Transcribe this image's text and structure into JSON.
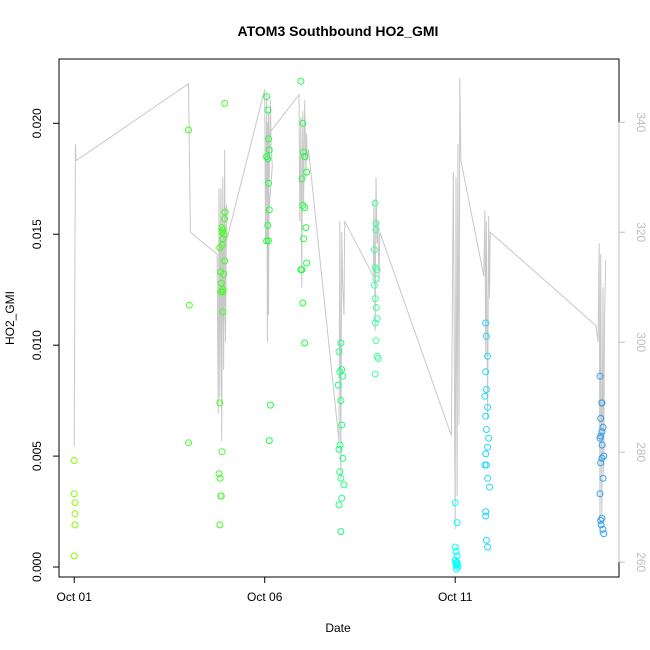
{
  "chart_data": {
    "type": "scatter",
    "title": "ATOM3 Southbound HO2_GMI",
    "xlabel": "Date",
    "ylabel": "HO2_GMI",
    "x_ticks": [
      {
        "label": "Oct 01",
        "value": 1
      },
      {
        "label": "Oct 06",
        "value": 6
      },
      {
        "label": "Oct 11",
        "value": 11
      }
    ],
    "xlim": [
      0.6,
      15.3
    ],
    "ylim": [
      -0.00045,
      0.0229
    ],
    "y_ticks": [
      0.0,
      0.005,
      0.01,
      0.015,
      0.02
    ],
    "y_tick_labels": [
      "0.000",
      "0.005",
      "0.010",
      "0.015",
      "0.020"
    ],
    "right_axis": {
      "ticks": [
        260,
        280,
        300,
        320,
        340
      ],
      "ylim": [
        257.3,
        351.5
      ],
      "color": "#bebebe"
    },
    "grid": false,
    "series": [
      {
        "color": "#80ff00",
        "x": [
          1.0,
          1.0,
          1.02,
          1.02,
          1.02,
          1.0
        ],
        "y": [
          0.0048,
          0.0033,
          0.0029,
          0.0024,
          0.0019,
          0.0005
        ]
      },
      {
        "color": "#40ff20",
        "x": [
          4.0,
          4.02,
          4.0,
          4.95,
          4.82,
          4.8,
          4.83,
          4.85,
          4.82,
          4.86,
          4.88,
          4.9,
          4.85,
          4.9,
          4.92,
          4.95,
          4.88,
          4.9,
          4.93,
          4.9,
          4.88,
          4.95,
          4.96,
          4.9,
          4.86,
          4.84,
          4.82,
          4.88
        ],
        "y": [
          0.0197,
          0.0118,
          0.0056,
          0.0209,
          0.0074,
          0.0042,
          0.004,
          0.0032,
          0.0019,
          0.0032,
          0.0052,
          0.0115,
          0.0124,
          0.0125,
          0.0132,
          0.0138,
          0.0145,
          0.0148,
          0.015,
          0.0152,
          0.0153,
          0.0157,
          0.016,
          0.0124,
          0.0128,
          0.0133,
          0.0144,
          0.0151
        ]
      },
      {
        "color": "#20ff40",
        "x": [
          6.05,
          6.08,
          6.1,
          6.12,
          6.05,
          6.08,
          6.1,
          6.12,
          6.08,
          6.05,
          6.1,
          6.15,
          6.12,
          6.95,
          7.0,
          7.02,
          7.05,
          7.1,
          6.98,
          7.0,
          7.05,
          7.08,
          7.02,
          6.95,
          7.0,
          7.1,
          7.05,
          6.98
        ],
        "y": [
          0.0212,
          0.0206,
          0.0193,
          0.0188,
          0.0185,
          0.0184,
          0.0173,
          0.0161,
          0.0154,
          0.0147,
          0.0147,
          0.0073,
          0.0057,
          0.0219,
          0.02,
          0.0187,
          0.0185,
          0.0178,
          0.0175,
          0.0163,
          0.0162,
          0.0153,
          0.0148,
          0.0134,
          0.0119,
          0.0137,
          0.0101,
          0.0134
        ]
      },
      {
        "color": "#20ff80",
        "x": [
          8.0,
          7.95,
          8.02,
          7.97,
          8.05,
          7.93,
          8.0,
          8.02,
          7.98,
          7.95,
          8.05,
          7.97,
          8.0,
          8.08,
          8.02,
          7.95,
          8.0
        ],
        "y": [
          0.0101,
          0.0097,
          0.0089,
          0.0088,
          0.0086,
          0.0082,
          0.0075,
          0.0064,
          0.0055,
          0.0053,
          0.0049,
          0.0043,
          0.004,
          0.0037,
          0.0031,
          0.0028,
          0.0016
        ]
      },
      {
        "color": "#40ffa0",
        "x": [
          8.9,
          8.92,
          8.88,
          8.9,
          8.95,
          8.92,
          8.88,
          8.9,
          8.93,
          8.95,
          8.9,
          8.92,
          8.98,
          8.95,
          8.9,
          8.92
        ],
        "y": [
          0.0164,
          0.0155,
          0.0143,
          0.0135,
          0.0134,
          0.013,
          0.0127,
          0.0121,
          0.0117,
          0.0112,
          0.011,
          0.0102,
          0.0094,
          0.0095,
          0.0087,
          0.0152
        ]
      },
      {
        "color": "#00ffff",
        "x": [
          11.0,
          11.05,
          11.0,
          11.02,
          11.05,
          11.0,
          11.03,
          11.05,
          11.02,
          11.07,
          11.0,
          11.05,
          11.03
        ],
        "y": [
          0.0029,
          0.002,
          0.0009,
          0.0007,
          0.0005,
          0.0003,
          0.0002,
          0.0002,
          0.0001,
          0.0,
          0.0003,
          0.0001,
          -0.0001
        ]
      },
      {
        "color": "#20d8ff",
        "x": [
          11.8,
          11.82,
          11.85,
          11.8,
          11.82,
          11.78,
          11.85,
          11.8,
          11.82,
          11.88,
          11.85,
          11.8,
          11.82,
          11.78,
          11.85,
          11.9,
          11.8,
          11.82,
          11.85,
          11.8
        ],
        "y": [
          0.011,
          0.0104,
          0.0095,
          0.0088,
          0.008,
          0.0077,
          0.0072,
          0.0068,
          0.0062,
          0.0058,
          0.0054,
          0.0051,
          0.0046,
          0.0046,
          0.004,
          0.0036,
          0.0023,
          0.0012,
          0.0009,
          0.0025
        ]
      },
      {
        "color": "#30a0f0",
        "x": [
          14.8,
          14.85,
          14.82,
          14.88,
          14.85,
          14.82,
          14.8,
          14.86,
          14.9,
          14.85,
          14.82,
          14.88,
          14.8,
          14.85,
          14.82,
          14.83,
          14.88,
          14.9,
          14.85
        ],
        "y": [
          0.0086,
          0.0074,
          0.0067,
          0.0063,
          0.0061,
          0.0059,
          0.0058,
          0.0055,
          0.005,
          0.0049,
          0.0047,
          0.004,
          0.0033,
          0.0022,
          0.0021,
          0.0019,
          0.0017,
          0.0015,
          0.0074
        ]
      }
    ],
    "secondary_line": {
      "color": "#c8c8c8",
      "x": [
        1.0,
        1.03,
        1.05,
        4.0,
        4.05,
        4.75,
        4.78,
        4.8,
        4.82,
        4.85,
        4.87,
        4.9,
        4.92,
        4.95,
        4.97,
        5.0,
        4.82,
        4.85,
        4.88,
        4.9,
        4.92,
        4.95,
        4.8,
        6.0,
        6.02,
        6.05,
        6.07,
        6.1,
        6.12,
        6.15,
        6.17,
        6.2,
        6.05,
        6.08,
        6.1,
        6.12,
        6.9,
        6.92,
        6.95,
        6.97,
        7.0,
        7.02,
        7.05,
        7.08,
        7.1,
        7.12,
        7.15,
        7.95,
        7.97,
        8.0,
        8.02,
        8.05,
        8.08,
        8.1,
        8.85,
        8.87,
        8.9,
        8.92,
        8.95,
        8.97,
        9.0,
        9.02,
        10.9,
        10.95,
        11.0,
        11.02,
        11.05,
        11.07,
        11.1,
        11.12,
        11.15,
        11.75,
        11.78,
        11.8,
        11.82,
        11.85,
        11.88,
        11.9,
        11.92,
        14.7,
        14.75,
        14.78,
        14.8,
        14.82,
        14.85,
        14.88,
        14.9,
        14.92,
        14.95
      ],
      "y": [
        281,
        336,
        333,
        347,
        320,
        316,
        287,
        328,
        290,
        325,
        282,
        330,
        295,
        335,
        300,
        325,
        310,
        328,
        305,
        315,
        298,
        312,
        313,
        346,
        318,
        345,
        300,
        342,
        330,
        344,
        335,
        332,
        318,
        340,
        305,
        338,
        345,
        322,
        341,
        310,
        342,
        325,
        344,
        330,
        338,
        333,
        335,
        282,
        322,
        275,
        320,
        310,
        305,
        322,
        312,
        326,
        302,
        330,
        318,
        322,
        311,
        320,
        283,
        331,
        266,
        330,
        272,
        336,
        285,
        348,
        333,
        312,
        324,
        297,
        322,
        286,
        323,
        308,
        320,
        303,
        300,
        318,
        265,
        316,
        268,
        310,
        276,
        304,
        315
      ]
    }
  }
}
